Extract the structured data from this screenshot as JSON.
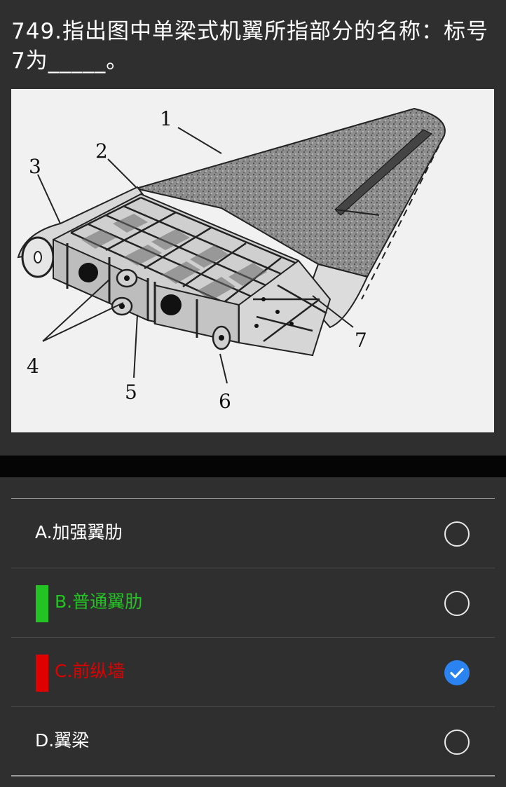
{
  "question": {
    "text": "749.指出图中单梁式机翼所指部分的名称：标号7为_____。"
  },
  "figure": {
    "callouts": [
      "1",
      "2",
      "3",
      "4",
      "5",
      "6",
      "7"
    ]
  },
  "options": [
    {
      "label": "A.加强翼肋",
      "state": "none",
      "selected": false
    },
    {
      "label": "B.普通翼肋",
      "state": "correct",
      "selected": false
    },
    {
      "label": "C.前纵墙",
      "state": "wrong",
      "selected": true
    },
    {
      "label": "D.翼梁",
      "state": "none",
      "selected": false
    }
  ],
  "colors": {
    "background": "#2f2f2f",
    "correct": "#22c322",
    "wrong": "#e00000",
    "selected_radio": "#2a83f1"
  },
  "icons": {
    "unselected": "radio-empty-icon",
    "selected": "check-circle-icon"
  }
}
